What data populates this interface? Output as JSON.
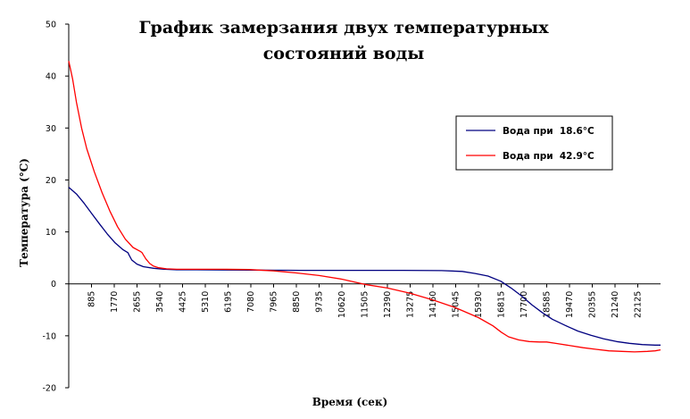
{
  "chart_data": {
    "type": "line",
    "title_lines": [
      "График замерзания двух температурных",
      "состояний воды"
    ],
    "xlabel": "Время (сек)",
    "ylabel": "Температура (°С)",
    "xlim": [
      0,
      23010
    ],
    "ylim": [
      -20,
      50
    ],
    "y_ticks": [
      50,
      40,
      30,
      20,
      10,
      0,
      -10,
      -20
    ],
    "x_ticks": [
      885,
      1770,
      2655,
      3540,
      4425,
      5310,
      6195,
      7080,
      7965,
      8850,
      9735,
      10620,
      11505,
      12390,
      13275,
      14160,
      15045,
      15930,
      16815,
      17700,
      18585,
      19470,
      20355,
      21240,
      22125
    ],
    "legend_position": "right",
    "grid": false,
    "series": [
      {
        "name": "Вода при  18.6°С",
        "color": "#000080",
        "x": [
          0,
          300,
          600,
          900,
          1200,
          1500,
          1800,
          2100,
          2300,
          2350,
          2450,
          2650,
          2900,
          3300,
          3700,
          4200,
          5000,
          7000,
          9000,
          11000,
          13000,
          14500,
          15300,
          15800,
          16300,
          16800,
          17200,
          17600,
          18000,
          18400,
          18800,
          19300,
          19800,
          20300,
          20800,
          21300,
          21800,
          22300,
          22800,
          23010
        ],
        "values": [
          18.6,
          17.3,
          15.5,
          13.5,
          11.5,
          9.6,
          7.9,
          6.6,
          6.0,
          5.5,
          4.6,
          3.8,
          3.3,
          3.0,
          2.8,
          2.7,
          2.7,
          2.65,
          2.6,
          2.6,
          2.6,
          2.55,
          2.4,
          2.0,
          1.5,
          0.5,
          -0.8,
          -2.3,
          -4.0,
          -5.5,
          -6.8,
          -8.0,
          -9.1,
          -9.9,
          -10.6,
          -11.1,
          -11.45,
          -11.7,
          -11.8,
          -11.8
        ]
      },
      {
        "name": "Вода при  42.9°С",
        "color": "#ff0000",
        "x": [
          0,
          150,
          300,
          500,
          700,
          1000,
          1300,
          1600,
          1900,
          2200,
          2500,
          2800,
          2850,
          3000,
          3150,
          3300,
          3500,
          3800,
          4200,
          5000,
          6000,
          7000,
          7965,
          8850,
          9735,
          10620,
          11505,
          12390,
          13275,
          14160,
          15045,
          15930,
          16500,
          16815,
          17100,
          17500,
          17900,
          18300,
          18585,
          19000,
          19500,
          20000,
          20500,
          21000,
          21500,
          22000,
          22500,
          22800,
          23010
        ],
        "values": [
          42.9,
          39.5,
          35.0,
          30.0,
          26.0,
          21.5,
          17.5,
          14.0,
          11.0,
          8.6,
          7.0,
          6.2,
          6.0,
          4.8,
          3.9,
          3.4,
          3.1,
          2.9,
          2.8,
          2.8,
          2.8,
          2.75,
          2.5,
          2.1,
          1.6,
          0.9,
          -0.1,
          -0.8,
          -1.8,
          -3.1,
          -4.6,
          -6.5,
          -8.1,
          -9.3,
          -10.2,
          -10.8,
          -11.1,
          -11.2,
          -11.2,
          -11.5,
          -11.9,
          -12.3,
          -12.6,
          -12.9,
          -13.0,
          -13.1,
          -13.0,
          -12.9,
          -12.7
        ]
      }
    ]
  }
}
